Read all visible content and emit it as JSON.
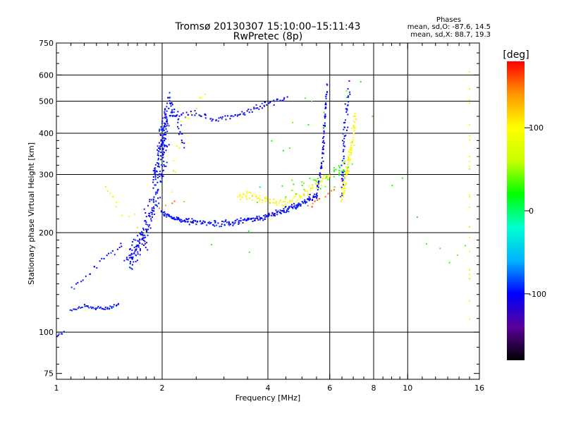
{
  "chart_data": {
    "type": "scatter",
    "title": "Tromsø 20130307 15:10:00–15:11:43",
    "subtitle": "RwPretec (8p)",
    "phase_block": {
      "heading": "Phases",
      "line_o": "mean, sd,O: -87.6, 14.5",
      "line_x": "mean, sd,X: 88.7, 19.3"
    },
    "xlabel": "Frequency [MHz]",
    "ylabel": "Stationary phase Virtual Height [km]",
    "xscale": "log",
    "yscale": "log",
    "xlim": [
      1,
      16
    ],
    "ylim": [
      72,
      750
    ],
    "x_ticks": [
      1,
      2,
      4,
      6,
      8,
      10,
      16
    ],
    "x_tick_labels": [
      "1",
      "2",
      "4",
      "6",
      "8",
      "10",
      "16"
    ],
    "x_minor_ticks": [
      1.1,
      1.2,
      1.3,
      1.4,
      1.5,
      1.6,
      1.7,
      1.8,
      1.9,
      2.5,
      3,
      3.5,
      4.5,
      5,
      5.5,
      6.5,
      7,
      7.5,
      8.5,
      9,
      9.5,
      11,
      12,
      13,
      14,
      15
    ],
    "x_gridlines": [
      2,
      4,
      6,
      8,
      10
    ],
    "y_ticks": [
      75,
      100,
      200,
      300,
      400,
      500,
      600,
      750
    ],
    "y_tick_labels": [
      "75",
      "100",
      "200",
      "300",
      "400",
      "500",
      "600",
      "750"
    ],
    "y_minor_ticks": [
      80,
      90,
      110,
      120,
      130,
      140,
      150,
      160,
      170,
      180,
      190,
      220,
      240,
      260,
      280,
      320,
      340,
      360,
      380,
      450,
      550,
      650,
      700
    ],
    "y_gridlines": [
      100,
      200,
      300,
      400,
      500,
      600
    ],
    "grid": true,
    "colorbar": {
      "label": "[deg]",
      "range": [
        -180,
        180
      ],
      "ticks": [
        100,
        0,
        -100
      ],
      "tick_labels": [
        "100",
        "0",
        "-100"
      ],
      "stops": [
        "#000000",
        "#5a009a",
        "#0000ff",
        "#00b4ff",
        "#00ffd0",
        "#00ff00",
        "#c8ff00",
        "#ffff00",
        "#ff9900",
        "#ff0000"
      ]
    },
    "series": [
      {
        "phase": -100,
        "note": "O-mode trace",
        "segments": [
          {
            "x": [
              1.0,
              1.05
            ],
            "y": [
              97,
              100
            ],
            "n": 6,
            "jx": 0.01,
            "jy": 0.01
          },
          {
            "x": [
              1.1,
              1.2,
              1.3,
              1.4,
              1.5
            ],
            "y": [
              117,
              120,
              118,
              118,
              122
            ],
            "n": 45,
            "jx": 0.01,
            "jy": 0.015
          },
          {
            "x": [
              1.1,
              1.25,
              1.4,
              1.55
            ],
            "y": [
              135,
              150,
              170,
              185
            ],
            "n": 24,
            "jx": 0.02,
            "jy": 0.04
          },
          {
            "x": [
              1.6,
              1.7,
              1.8,
              1.9,
              2.0,
              2.05
            ],
            "y": [
              165,
              180,
              200,
              250,
              320,
              420
            ],
            "n": 220,
            "jx": 0.04,
            "jy": 0.14
          },
          {
            "x": [
              1.9,
              2.0,
              2.1
            ],
            "y": [
              300,
              400,
              500
            ],
            "n": 90,
            "jx": 0.025,
            "jy": 0.12
          },
          {
            "x": [
              2.0,
              2.2,
              2.5,
              3.0,
              3.5,
              4.0,
              4.5,
              5.0,
              5.5
            ],
            "y": [
              230,
              220,
              215,
              213,
              218,
              225,
              235,
              245,
              260
            ],
            "n": 260,
            "jx": 0.02,
            "jy": 0.03
          },
          {
            "x": [
              5.5,
              5.7,
              5.8,
              5.9
            ],
            "y": [
              260,
              320,
              420,
              550
            ],
            "n": 70,
            "jx": 0.01,
            "jy": 0.05
          },
          {
            "x": [
              2.1,
              2.4,
              2.8,
              3.2,
              3.6,
              4.0,
              4.5
            ],
            "y": [
              450,
              460,
              440,
              450,
              470,
              490,
              510
            ],
            "n": 90,
            "jx": 0.02,
            "jy": 0.03
          },
          {
            "x": [
              2.1,
              2.2,
              2.3
            ],
            "y": [
              500,
              450,
              360
            ],
            "n": 30,
            "jx": 0.02,
            "jy": 0.05
          },
          {
            "x": [
              6.5,
              6.6,
              6.8
            ],
            "y": [
              260,
              380,
              560
            ],
            "n": 60,
            "jx": 0.02,
            "jy": 0.08
          }
        ]
      },
      {
        "phase": 100,
        "note": "X-mode trace",
        "segments": [
          {
            "x": [
              3.3,
              3.6,
              4.0,
              4.5,
              5.0,
              5.5,
              6.0
            ],
            "y": [
              260,
              258,
              250,
              245,
              260,
              280,
              300
            ],
            "n": 100,
            "jx": 0.02,
            "jy": 0.04
          },
          {
            "x": [
              6.5,
              6.7,
              6.9,
              7.1
            ],
            "y": [
              260,
              300,
              360,
              450
            ],
            "n": 90,
            "jx": 0.015,
            "jy": 0.09
          },
          {
            "x": [
              2.1,
              2.3,
              2.6
            ],
            "y": [
              280,
              420,
              520
            ],
            "n": 16,
            "jx": 0.04,
            "jy": 0.08
          },
          {
            "x": [
              1.4,
              1.5,
              1.8
            ],
            "y": [
              265,
              250,
              200
            ],
            "n": 12,
            "jx": 0.05,
            "jy": 0.1
          },
          {
            "x": [
              15.0,
              15.0
            ],
            "y": [
              120,
              620
            ],
            "n": 22,
            "jx": 0.003,
            "jy": 0.3
          }
        ]
      },
      {
        "phase": 30,
        "note": "scattered mixed",
        "segments": [
          {
            "x": [
              4.5,
              6.0,
              6.8
            ],
            "y": [
              270,
              290,
              330
            ],
            "n": 40,
            "jx": 0.05,
            "jy": 0.08
          },
          {
            "x": [
              3.0,
              5.0,
              7.5
            ],
            "y": [
              180,
              440,
              560
            ],
            "n": 18,
            "jx": 0.15,
            "jy": 0.3
          },
          {
            "x": [
              9.0,
              12.0,
              15.0
            ],
            "y": [
              300,
              160,
              190
            ],
            "n": 8,
            "jx": 0.05,
            "jy": 0.2
          }
        ]
      },
      {
        "phase": 150,
        "note": "red points",
        "segments": [
          {
            "x": [
              5.2,
              5.6,
              6.2
            ],
            "y": [
              240,
              255,
              270
            ],
            "n": 10,
            "jx": 0.03,
            "jy": 0.03
          },
          {
            "x": [
              2.0,
              2.3
            ],
            "y": [
              240,
              250
            ],
            "n": 5,
            "jx": 0.03,
            "jy": 0.04
          }
        ]
      }
    ]
  }
}
